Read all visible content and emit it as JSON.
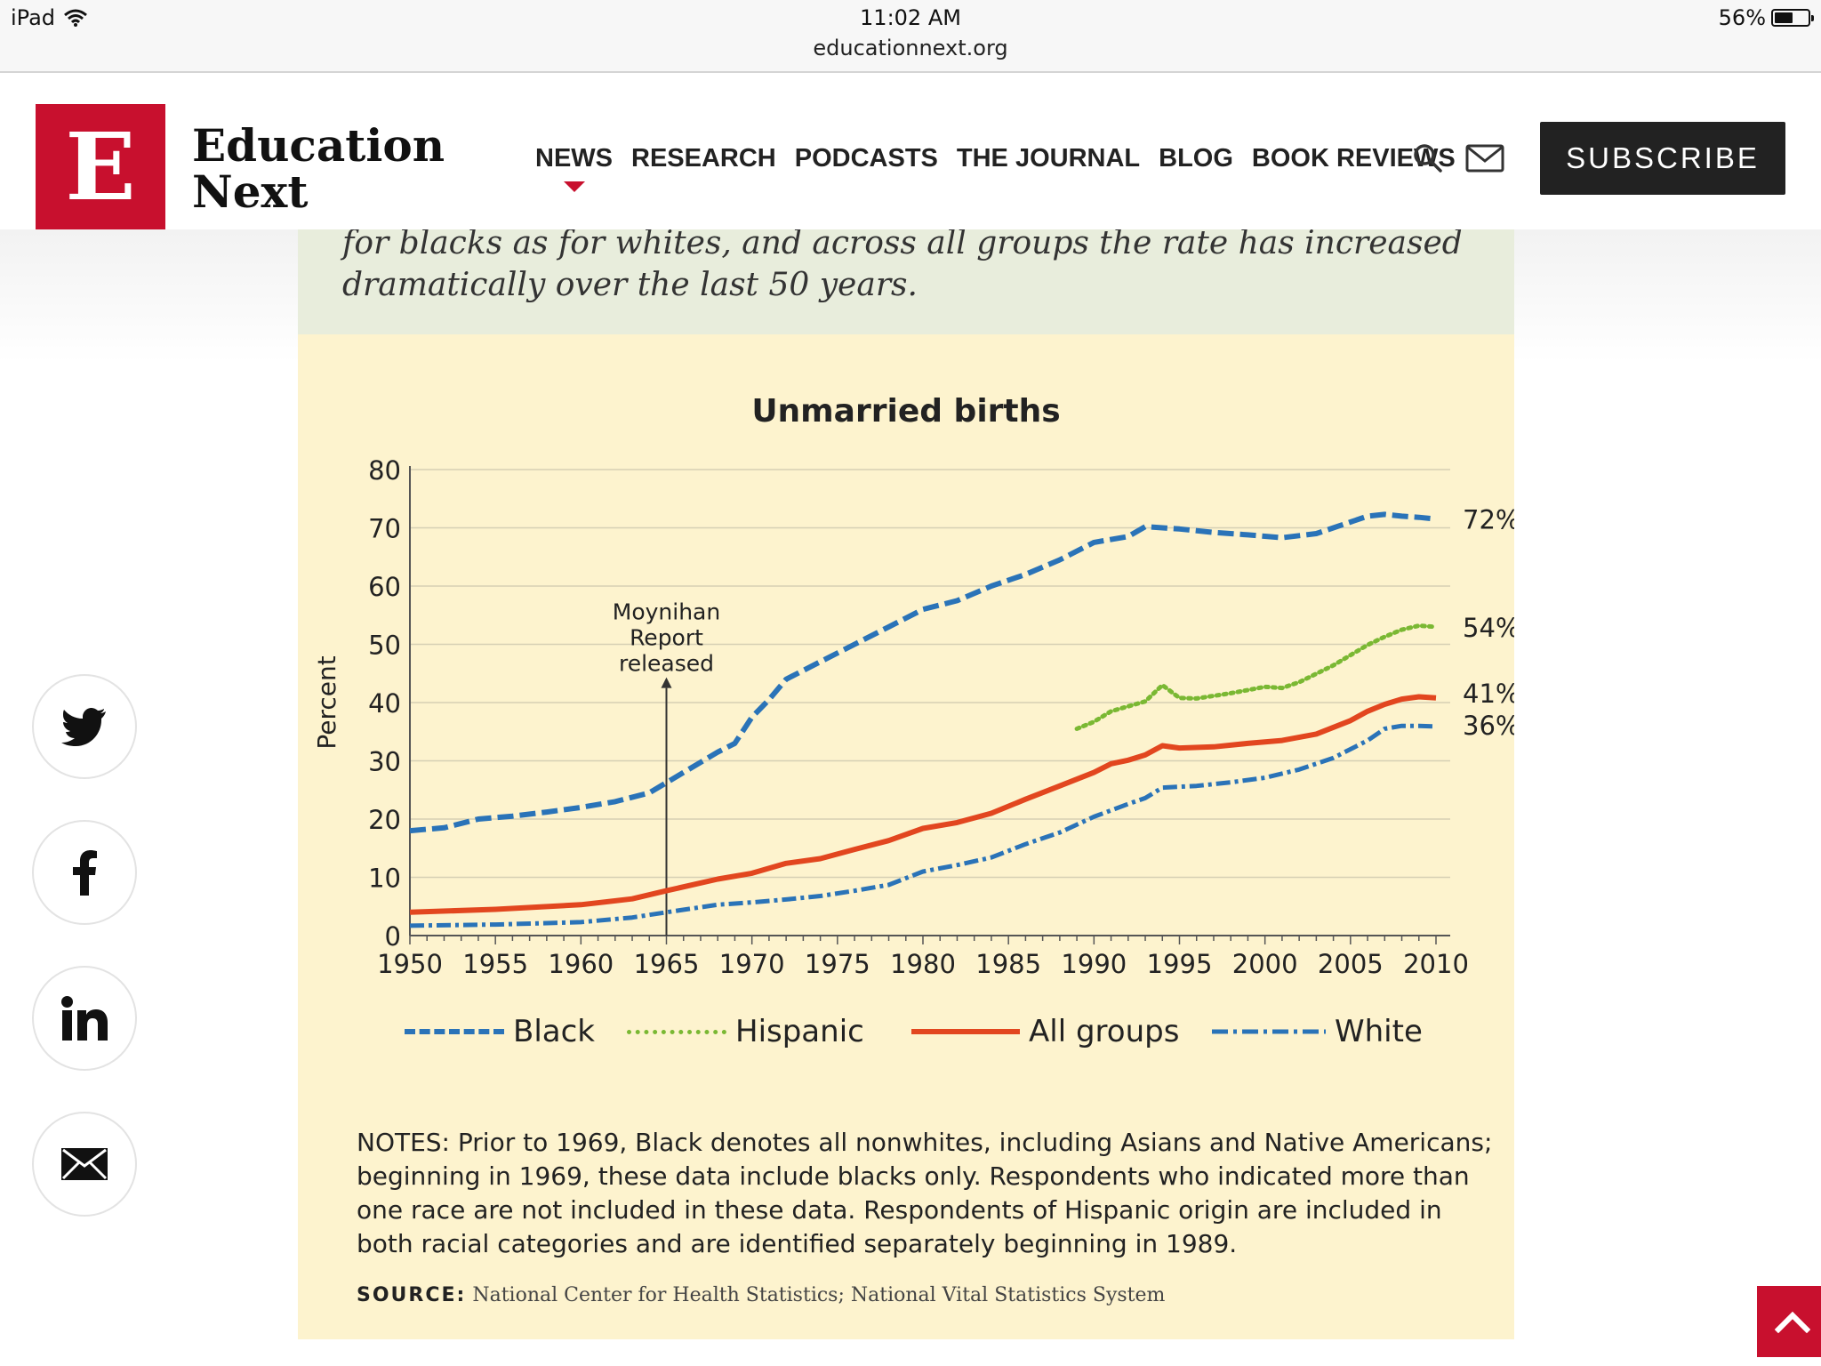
{
  "status_bar": {
    "device": "iPad",
    "time": "11:02 AM",
    "url": "educationnext.org",
    "battery": "56%",
    "battery_level": 0.56
  },
  "header": {
    "logo_letter": "E",
    "logo_line1": "Education",
    "logo_line2": "Next",
    "nav": [
      "NEWS",
      "RESEARCH",
      "PODCASTS",
      "THE JOURNAL",
      "BLOG",
      "BOOK REVIEWS"
    ],
    "active_nav": "NEWS",
    "search_icon": "search-icon",
    "mail_icon": "mail-icon",
    "subscribe_label": "SUBSCRIBE"
  },
  "caption": {
    "line1": "for blacks as for whites, and across all groups the rate has increased",
    "line2": "dramatically over the last 50 years."
  },
  "chart_data": {
    "type": "line",
    "title": "Unmarried births",
    "xlabel": "",
    "ylabel": "Percent",
    "xlim": [
      1950,
      2010
    ],
    "ylim": [
      0,
      80
    ],
    "x_ticks": [
      "1950",
      "1955",
      "1960",
      "1965",
      "1970",
      "1975",
      "1980",
      "1985",
      "1990",
      "1995",
      "2000",
      "2005",
      "2010"
    ],
    "y_ticks": [
      "0",
      "10",
      "20",
      "30",
      "40",
      "50",
      "60",
      "70",
      "80"
    ],
    "grid": true,
    "legend_position": "bottom",
    "annotation": {
      "lines": [
        "Moynihan",
        "Report",
        "released"
      ],
      "x": 1965
    },
    "series": [
      {
        "name": "Black",
        "style": "dashed",
        "color": "#2a73b8",
        "end_label": "72%",
        "points": [
          [
            1950,
            18
          ],
          [
            1952,
            18.5
          ],
          [
            1954,
            20
          ],
          [
            1956,
            20.5
          ],
          [
            1958,
            21.2
          ],
          [
            1960,
            22
          ],
          [
            1962,
            23
          ],
          [
            1964,
            24.5
          ],
          [
            1966,
            28
          ],
          [
            1968,
            31.5
          ],
          [
            1969,
            33
          ],
          [
            1970,
            37.5
          ],
          [
            1971,
            40.5
          ],
          [
            1972,
            44
          ],
          [
            1974,
            47
          ],
          [
            1976,
            50
          ],
          [
            1978,
            53
          ],
          [
            1980,
            56
          ],
          [
            1982,
            57.5
          ],
          [
            1984,
            60
          ],
          [
            1986,
            62
          ],
          [
            1988,
            64.5
          ],
          [
            1990,
            67.5
          ],
          [
            1992,
            68.5
          ],
          [
            1993,
            70.2
          ],
          [
            1995,
            69.8
          ],
          [
            1997,
            69.2
          ],
          [
            1999,
            68.8
          ],
          [
            2001,
            68.3
          ],
          [
            2003,
            69
          ],
          [
            2005,
            71
          ],
          [
            2006,
            72
          ],
          [
            2007,
            72.3
          ],
          [
            2008,
            72
          ],
          [
            2009,
            71.8
          ],
          [
            2010,
            71.5
          ]
        ]
      },
      {
        "name": "Hispanic",
        "style": "dotted",
        "color": "#7ab833",
        "end_label": "54%",
        "points": [
          [
            1989,
            35.5
          ],
          [
            1990,
            36.7
          ],
          [
            1991,
            38.5
          ],
          [
            1993,
            40.2
          ],
          [
            1994,
            43
          ],
          [
            1995,
            40.8
          ],
          [
            1996,
            40.7
          ],
          [
            1998,
            41.6
          ],
          [
            2000,
            42.7
          ],
          [
            2001,
            42.5
          ],
          [
            2002,
            43.5
          ],
          [
            2004,
            46.4
          ],
          [
            2006,
            49.9
          ],
          [
            2007,
            51.3
          ],
          [
            2008,
            52.5
          ],
          [
            2009,
            53.2
          ],
          [
            2010,
            53
          ]
        ]
      },
      {
        "name": "All groups",
        "style": "solid",
        "color": "#e2461f",
        "end_label": "41%",
        "points": [
          [
            1950,
            4
          ],
          [
            1955,
            4.5
          ],
          [
            1960,
            5.3
          ],
          [
            1963,
            6.3
          ],
          [
            1965,
            7.7
          ],
          [
            1968,
            9.7
          ],
          [
            1970,
            10.7
          ],
          [
            1972,
            12.4
          ],
          [
            1974,
            13.2
          ],
          [
            1976,
            14.8
          ],
          [
            1978,
            16.3
          ],
          [
            1980,
            18.4
          ],
          [
            1982,
            19.4
          ],
          [
            1984,
            21
          ],
          [
            1986,
            23.4
          ],
          [
            1988,
            25.7
          ],
          [
            1990,
            28
          ],
          [
            1991,
            29.5
          ],
          [
            1992,
            30.1
          ],
          [
            1993,
            31
          ],
          [
            1994,
            32.6
          ],
          [
            1995,
            32.2
          ],
          [
            1997,
            32.4
          ],
          [
            1999,
            33
          ],
          [
            2001,
            33.5
          ],
          [
            2003,
            34.6
          ],
          [
            2005,
            36.9
          ],
          [
            2006,
            38.5
          ],
          [
            2007,
            39.7
          ],
          [
            2008,
            40.6
          ],
          [
            2009,
            41
          ],
          [
            2010,
            40.8
          ]
        ]
      },
      {
        "name": "White",
        "style": "dashdot",
        "color": "#2a73b8",
        "end_label": "36%",
        "points": [
          [
            1950,
            1.7
          ],
          [
            1955,
            1.9
          ],
          [
            1960,
            2.3
          ],
          [
            1963,
            3.1
          ],
          [
            1965,
            4
          ],
          [
            1968,
            5.3
          ],
          [
            1970,
            5.7
          ],
          [
            1972,
            6.2
          ],
          [
            1974,
            6.8
          ],
          [
            1976,
            7.7
          ],
          [
            1978,
            8.7
          ],
          [
            1980,
            11
          ],
          [
            1982,
            12.1
          ],
          [
            1984,
            13.4
          ],
          [
            1986,
            15.7
          ],
          [
            1988,
            17.7
          ],
          [
            1990,
            20.4
          ],
          [
            1992,
            22.6
          ],
          [
            1993,
            23.6
          ],
          [
            1994,
            25.4
          ],
          [
            1996,
            25.7
          ],
          [
            1998,
            26.3
          ],
          [
            2000,
            27.1
          ],
          [
            2002,
            28.5
          ],
          [
            2004,
            30.5
          ],
          [
            2006,
            33.5
          ],
          [
            2007,
            35.5
          ],
          [
            2008,
            36
          ],
          [
            2009,
            36
          ],
          [
            2010,
            35.9
          ]
        ]
      }
    ]
  },
  "figure": {
    "notes": "NOTES: Prior to 1969, Black denotes all nonwhites, including Asians and Native Americans; beginning in 1969, these data include blacks only. Respondents who indicated more than one race are not included in these data. Respondents of Hispanic origin are included in both racial categories and are identified separately beginning in 1989.",
    "source_label": "SOURCE:",
    "source_text": "National Center for Health Statistics; National Vital Statistics System"
  },
  "share": [
    "twitter-icon",
    "facebook-icon",
    "linkedin-icon",
    "email-icon"
  ],
  "scroll_top_icon": "chevron-up-icon"
}
